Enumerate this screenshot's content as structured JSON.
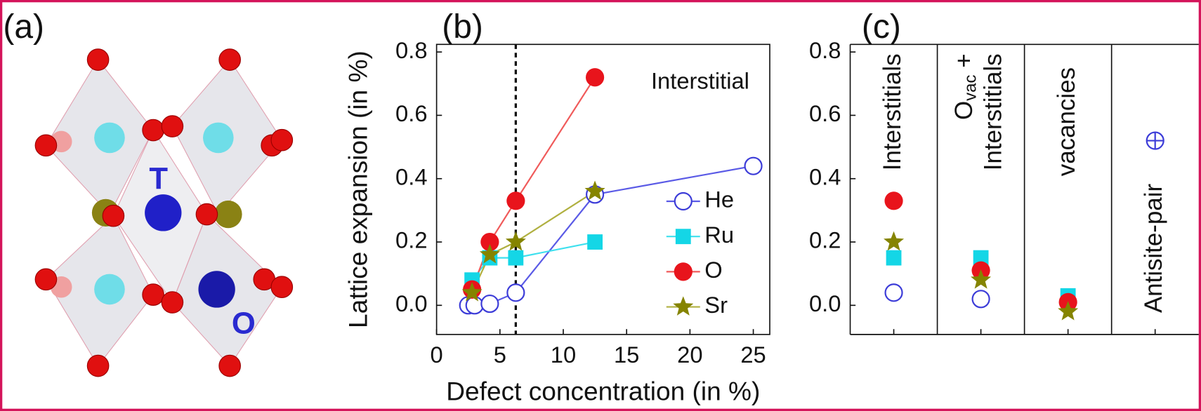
{
  "structure": {
    "panel_label": "(a)",
    "site_labels": [
      "T",
      "O"
    ]
  },
  "chart_data": [
    {
      "type": "line",
      "panel_label": "(b)",
      "annotation": "Interstitial",
      "x_label": "Defect concentration (in %)",
      "y_label": "Lattice expansion (in %)",
      "xlim": [
        0,
        26.3
      ],
      "xticks": [
        0,
        5,
        10,
        15,
        20,
        25
      ],
      "ylim": [
        -0.092,
        0.824
      ],
      "yticks": [
        {
          "value": 0,
          "label": "0.0"
        },
        0.2,
        0.4,
        0.6,
        0.8
      ],
      "vline": 6.25,
      "series": [
        {
          "name": "He",
          "color": "#3c3cd8",
          "line_color": "#5a5ae6",
          "marker": "open-circle",
          "x": [
            2.5,
            3.0,
            4.2,
            6.25,
            12.5,
            25
          ],
          "values": [
            0.0,
            0.0,
            0.005,
            0.04,
            0.35,
            0.44
          ]
        },
        {
          "name": "Ru",
          "color": "#14d6e6",
          "line_color": "#3ee0ee",
          "marker": "square",
          "x": [
            2.8,
            4.2,
            6.25,
            12.5
          ],
          "values": [
            0.08,
            0.15,
            0.15,
            0.2
          ]
        },
        {
          "name": "O",
          "color": "#e8141c",
          "line_color": "#f05a5a",
          "marker": "circle",
          "x": [
            2.8,
            4.2,
            6.25,
            12.5
          ],
          "values": [
            0.05,
            0.2,
            0.33,
            0.72
          ]
        },
        {
          "name": "Sr",
          "color": "#858400",
          "line_color": "#b0b040",
          "marker": "star",
          "x": [
            2.8,
            4.2,
            6.25,
            12.5
          ],
          "values": [
            0.04,
            0.16,
            0.2,
            0.36
          ]
        }
      ]
    },
    {
      "type": "dot",
      "panel_label": "(c)",
      "ylim": [
        -0.092,
        0.824
      ],
      "yticks": [
        {
          "value": 0,
          "label": "0.0"
        },
        0.2,
        0.4,
        0.6,
        0.8
      ],
      "categories": [
        "Interstitials",
        {
          "main": "O",
          "sub": "vac",
          "rest": " +",
          "line2": "Interstitials"
        },
        "vacancies",
        "Antisite-pair"
      ],
      "series": [
        {
          "color": "#3c3cd8",
          "marker": "open-circle",
          "values": [
            0.04,
            0.02,
            null,
            null
          ]
        },
        {
          "color": "#14d6e6",
          "marker": "square",
          "values": [
            0.15,
            0.15,
            0.03,
            null
          ]
        },
        {
          "color": "#e8141c",
          "marker": "circle",
          "values": [
            0.33,
            0.11,
            0.01,
            null
          ]
        },
        {
          "color": "#858400",
          "marker": "star",
          "values": [
            0.2,
            0.08,
            -0.02,
            null
          ]
        },
        {
          "color": "#3c3cd8",
          "marker": "circle-plus",
          "values": [
            null,
            null,
            null,
            0.52
          ]
        }
      ]
    }
  ]
}
